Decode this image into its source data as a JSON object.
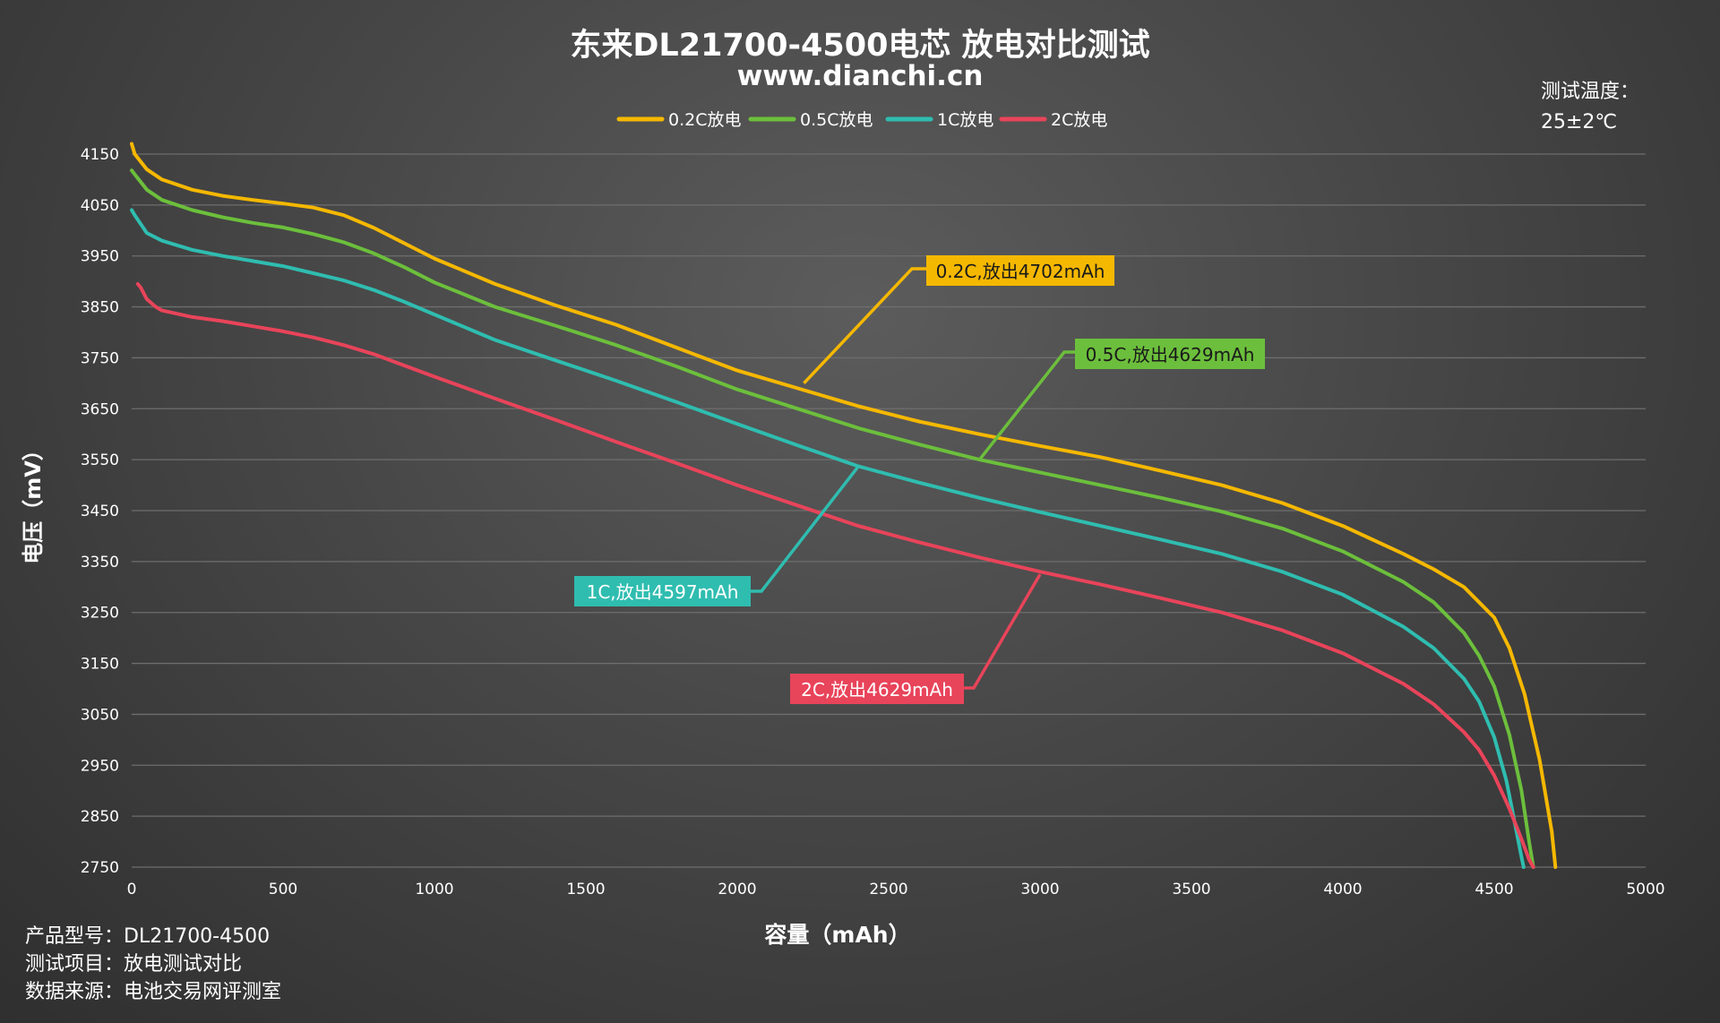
{
  "title": "东来DL21700-4500电芯 放电对比测试",
  "subtitle": "www.dianchi.cn",
  "temperature": {
    "label": "测试温度：",
    "value": "25±2℃"
  },
  "info": {
    "lines": [
      "产品型号：DL21700-4500",
      "测试项目：放电测试对比",
      "数据来源：电池交易网评测室"
    ]
  },
  "chart_data": {
    "type": "line",
    "xlabel": "容量（mAh）",
    "ylabel": "电压（mV）",
    "xlim": [
      0,
      5000
    ],
    "ylim": [
      2750,
      4150
    ],
    "x_ticks": [
      0,
      500,
      1000,
      1500,
      2000,
      2500,
      3000,
      3500,
      4000,
      4500,
      5000
    ],
    "y_ticks": [
      4150,
      4050,
      3950,
      3850,
      3750,
      3650,
      3550,
      3450,
      3350,
      3250,
      3150,
      3050,
      2950,
      2850,
      2750
    ],
    "grid": "horizontal",
    "legend_position": "top-center",
    "series": [
      {
        "name": "0.2C放电",
        "color": "#f5b800",
        "annotation": "0.2C,放出4702mAh",
        "points": [
          [
            0,
            4170
          ],
          [
            10,
            4150
          ],
          [
            50,
            4120
          ],
          [
            100,
            4100
          ],
          [
            200,
            4080
          ],
          [
            300,
            4068
          ],
          [
            400,
            4060
          ],
          [
            500,
            4053
          ],
          [
            600,
            4045
          ],
          [
            700,
            4030
          ],
          [
            800,
            4005
          ],
          [
            900,
            3975
          ],
          [
            1000,
            3945
          ],
          [
            1200,
            3895
          ],
          [
            1400,
            3853
          ],
          [
            1600,
            3815
          ],
          [
            1800,
            3770
          ],
          [
            2000,
            3725
          ],
          [
            2200,
            3690
          ],
          [
            2400,
            3655
          ],
          [
            2600,
            3625
          ],
          [
            2800,
            3600
          ],
          [
            3000,
            3577
          ],
          [
            3200,
            3555
          ],
          [
            3400,
            3528
          ],
          [
            3600,
            3500
          ],
          [
            3800,
            3465
          ],
          [
            4000,
            3420
          ],
          [
            4200,
            3365
          ],
          [
            4300,
            3335
          ],
          [
            4400,
            3300
          ],
          [
            4500,
            3240
          ],
          [
            4550,
            3180
          ],
          [
            4600,
            3090
          ],
          [
            4650,
            2960
          ],
          [
            4690,
            2820
          ],
          [
            4702,
            2750
          ]
        ]
      },
      {
        "name": "0.5C放电",
        "color": "#6cbf3c",
        "annotation": "0.5C,放出4629mAh",
        "points": [
          [
            0,
            4118
          ],
          [
            10,
            4110
          ],
          [
            50,
            4080
          ],
          [
            100,
            4060
          ],
          [
            200,
            4040
          ],
          [
            300,
            4026
          ],
          [
            400,
            4015
          ],
          [
            500,
            4006
          ],
          [
            600,
            3993
          ],
          [
            700,
            3977
          ],
          [
            800,
            3955
          ],
          [
            900,
            3928
          ],
          [
            1000,
            3898
          ],
          [
            1200,
            3850
          ],
          [
            1400,
            3813
          ],
          [
            1600,
            3775
          ],
          [
            1800,
            3733
          ],
          [
            2000,
            3688
          ],
          [
            2200,
            3650
          ],
          [
            2400,
            3612
          ],
          [
            2600,
            3580
          ],
          [
            2800,
            3550
          ],
          [
            3000,
            3525
          ],
          [
            3200,
            3500
          ],
          [
            3400,
            3475
          ],
          [
            3600,
            3448
          ],
          [
            3800,
            3415
          ],
          [
            4000,
            3370
          ],
          [
            4200,
            3310
          ],
          [
            4300,
            3270
          ],
          [
            4400,
            3210
          ],
          [
            4450,
            3165
          ],
          [
            4500,
            3105
          ],
          [
            4550,
            3010
          ],
          [
            4590,
            2900
          ],
          [
            4615,
            2800
          ],
          [
            4629,
            2750
          ]
        ]
      },
      {
        "name": "1C放电",
        "color": "#2fbdb0",
        "annotation": "1C,放出4597mAh",
        "points": [
          [
            0,
            4040
          ],
          [
            10,
            4030
          ],
          [
            50,
            3995
          ],
          [
            100,
            3980
          ],
          [
            200,
            3962
          ],
          [
            300,
            3950
          ],
          [
            400,
            3940
          ],
          [
            500,
            3930
          ],
          [
            600,
            3916
          ],
          [
            700,
            3902
          ],
          [
            800,
            3883
          ],
          [
            900,
            3860
          ],
          [
            1000,
            3835
          ],
          [
            1200,
            3785
          ],
          [
            1400,
            3745
          ],
          [
            1600,
            3705
          ],
          [
            1800,
            3663
          ],
          [
            2000,
            3620
          ],
          [
            2200,
            3578
          ],
          [
            2400,
            3537
          ],
          [
            2600,
            3505
          ],
          [
            2800,
            3475
          ],
          [
            3000,
            3447
          ],
          [
            3200,
            3420
          ],
          [
            3400,
            3393
          ],
          [
            3600,
            3365
          ],
          [
            3800,
            3330
          ],
          [
            4000,
            3285
          ],
          [
            4200,
            3222
          ],
          [
            4300,
            3180
          ],
          [
            4400,
            3120
          ],
          [
            4450,
            3075
          ],
          [
            4500,
            3005
          ],
          [
            4540,
            2920
          ],
          [
            4570,
            2830
          ],
          [
            4590,
            2770
          ],
          [
            4597,
            2750
          ]
        ]
      },
      {
        "name": "2C放电",
        "color": "#e8445a",
        "annotation": "2C,放出4629mAh",
        "points": [
          [
            20,
            3895
          ],
          [
            30,
            3888
          ],
          [
            50,
            3865
          ],
          [
            80,
            3850
          ],
          [
            100,
            3843
          ],
          [
            200,
            3830
          ],
          [
            300,
            3822
          ],
          [
            400,
            3812
          ],
          [
            500,
            3802
          ],
          [
            600,
            3790
          ],
          [
            700,
            3775
          ],
          [
            800,
            3757
          ],
          [
            900,
            3735
          ],
          [
            1000,
            3713
          ],
          [
            1200,
            3670
          ],
          [
            1400,
            3628
          ],
          [
            1600,
            3585
          ],
          [
            1800,
            3543
          ],
          [
            2000,
            3500
          ],
          [
            2200,
            3460
          ],
          [
            2400,
            3420
          ],
          [
            2600,
            3388
          ],
          [
            2800,
            3358
          ],
          [
            3000,
            3330
          ],
          [
            3200,
            3305
          ],
          [
            3400,
            3278
          ],
          [
            3600,
            3250
          ],
          [
            3800,
            3215
          ],
          [
            4000,
            3170
          ],
          [
            4200,
            3110
          ],
          [
            4300,
            3070
          ],
          [
            4400,
            3015
          ],
          [
            4450,
            2980
          ],
          [
            4500,
            2930
          ],
          [
            4550,
            2865
          ],
          [
            4590,
            2805
          ],
          [
            4615,
            2765
          ],
          [
            4629,
            2750
          ]
        ]
      }
    ]
  }
}
